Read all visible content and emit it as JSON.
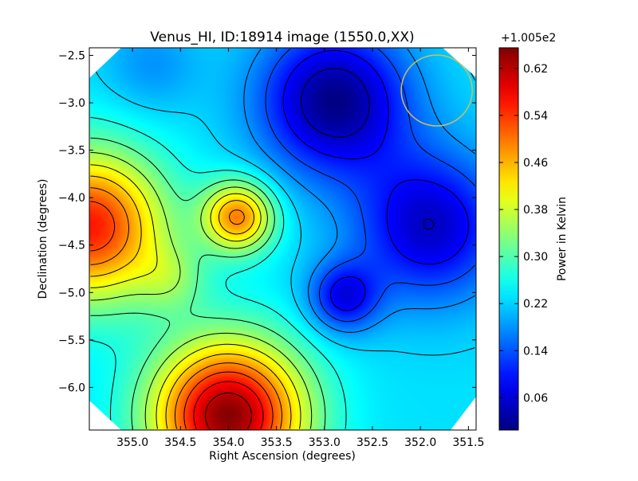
{
  "chart_data": {
    "type": "heatmap",
    "title": "Venus_HI, ID:18914 image (1550.0,XX)",
    "xlabel": "Right Ascension (degrees)",
    "ylabel": "Declination (degrees)",
    "x_ticks": [
      "355.0",
      "354.5",
      "354.0",
      "353.5",
      "353.0",
      "352.5",
      "352.0",
      "351.5"
    ],
    "x_tick_values": [
      355.0,
      354.5,
      354.0,
      353.5,
      353.0,
      352.5,
      352.0,
      351.5
    ],
    "y_ticks": [
      "−2.5",
      "−3.0",
      "−3.5",
      "−4.0",
      "−4.5",
      "−5.0",
      "−5.5",
      "−6.0"
    ],
    "y_tick_values": [
      -2.5,
      -3.0,
      -3.5,
      -4.0,
      -4.5,
      -5.0,
      -5.5,
      -6.0
    ],
    "xlim": [
      355.45,
      351.42
    ],
    "ylim": [
      -6.45,
      -2.42
    ],
    "x_axis_inverted": true,
    "grid": false,
    "colormap": "jet",
    "colorbar": {
      "label": "Power in Kelvin",
      "offset_text": "+1.005e2",
      "ticks": [
        "0.62",
        "0.54",
        "0.46",
        "0.38",
        "0.30",
        "0.22",
        "0.14",
        "0.06"
      ],
      "tick_values": [
        0.62,
        0.54,
        0.46,
        0.38,
        0.3,
        0.22,
        0.14,
        0.06
      ],
      "range": [
        0.005,
        0.655
      ]
    },
    "map_features": [
      {
        "kind": "maximum",
        "ra": 354.0,
        "dec": -6.3,
        "value": 0.65
      },
      {
        "kind": "maximum",
        "ra": 355.45,
        "dec": -4.3,
        "value": 0.56
      },
      {
        "kind": "local_maximum",
        "ra": 353.9,
        "dec": -4.2,
        "value": 0.49
      },
      {
        "kind": "local_maximum",
        "ra": 354.6,
        "dec": -4.85,
        "value": 0.3
      },
      {
        "kind": "minimum",
        "ra": 352.9,
        "dec": -2.98,
        "value": 0.01
      },
      {
        "kind": "local_minimum",
        "ra": 352.8,
        "dec": -5.05,
        "value": 0.08
      },
      {
        "kind": "minimum_region",
        "ra": 351.9,
        "dec": -4.3,
        "value": 0.05
      },
      {
        "kind": "saddle_low",
        "ra": 354.8,
        "dec": -2.6,
        "value": 0.18
      }
    ],
    "contour_count": 14,
    "beam_circle": {
      "ra": 351.83,
      "dec": -2.87,
      "radius_deg": 0.37,
      "color": "#c8c060"
    },
    "footprint": "octagon"
  },
  "colors": {
    "jet": [
      "#000080",
      "#0000ff",
      "#0080ff",
      "#00ffff",
      "#80ff80",
      "#ffff00",
      "#ff8000",
      "#ff0000",
      "#800000"
    ],
    "beam": "#c8c060",
    "contour": "#000000"
  }
}
